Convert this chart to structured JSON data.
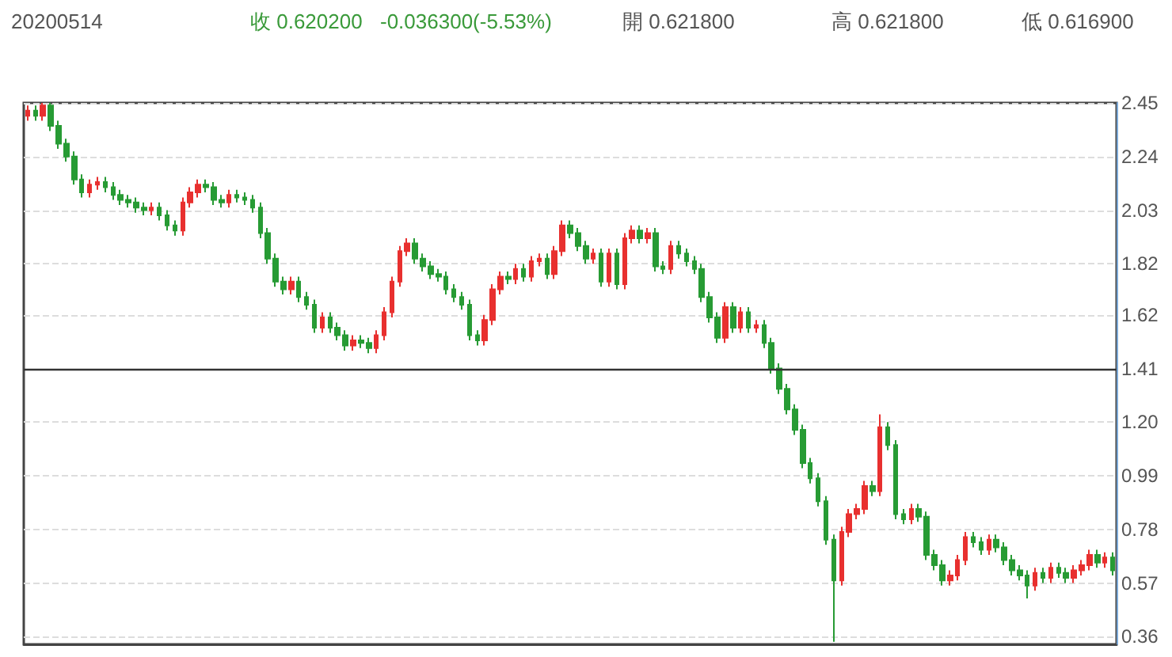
{
  "chart_data": {
    "type": "candlestick",
    "title": "20200514",
    "annotations": [
      "收 0.620200",
      "-0.036300(-5.53%)",
      "開 0.621800",
      "高 0.621800",
      "低 0.616900"
    ],
    "categories": [
      null,
      null,
      null,
      null,
      null,
      null,
      null,
      null,
      null,
      null,
      null,
      null,
      null,
      null,
      null,
      null,
      null,
      null,
      null,
      null,
      null,
      null,
      null,
      null,
      null,
      null,
      null,
      null,
      null,
      null,
      null,
      null,
      null,
      null,
      null,
      null,
      null,
      null,
      null,
      null,
      null,
      null,
      null,
      null,
      null,
      null,
      null,
      null,
      null,
      null,
      null,
      null,
      null,
      null,
      null,
      null,
      null,
      null,
      null,
      null,
      null,
      null,
      null,
      null,
      null,
      null,
      null,
      null,
      null,
      null,
      null,
      null,
      null,
      null,
      null,
      null,
      null,
      null,
      null,
      null,
      null,
      null,
      null,
      null,
      null,
      null,
      null,
      null,
      null,
      null,
      null,
      null,
      null,
      null,
      null,
      null,
      null,
      null,
      null,
      null,
      null,
      null,
      null,
      null,
      null,
      null,
      null,
      null,
      null,
      null,
      null,
      null,
      null,
      null,
      null,
      null,
      null,
      null,
      null,
      null,
      null,
      null,
      null,
      null,
      null,
      null,
      null,
      null,
      null,
      null,
      null,
      null,
      null,
      null,
      null,
      null,
      null,
      null,
      null,
      null,
      null
    ],
    "ohlc": [
      [
        2.4,
        2.44,
        2.38,
        2.42
      ],
      [
        2.42,
        2.44,
        2.38,
        2.4
      ],
      [
        2.4,
        2.45,
        2.38,
        2.44
      ],
      [
        2.44,
        2.45,
        2.34,
        2.36
      ],
      [
        2.36,
        2.38,
        2.27,
        2.29
      ],
      [
        2.29,
        2.31,
        2.22,
        2.24
      ],
      [
        2.24,
        2.26,
        2.13,
        2.15
      ],
      [
        2.15,
        2.17,
        2.08,
        2.1
      ],
      [
        2.1,
        2.15,
        2.08,
        2.13
      ],
      [
        2.13,
        2.16,
        2.11,
        2.14
      ],
      [
        2.14,
        2.16,
        2.1,
        2.12
      ],
      [
        2.12,
        2.14,
        2.07,
        2.09
      ],
      [
        2.09,
        2.11,
        2.05,
        2.07
      ],
      [
        2.07,
        2.09,
        2.04,
        2.06
      ],
      [
        2.06,
        2.08,
        2.02,
        2.04
      ],
      [
        2.04,
        2.06,
        2.01,
        2.03
      ],
      [
        2.03,
        2.06,
        2.01,
        2.04
      ],
      [
        2.04,
        2.06,
        1.99,
        2.01
      ],
      [
        2.01,
        2.03,
        1.95,
        1.97
      ],
      [
        1.97,
        1.99,
        1.93,
        1.95
      ],
      [
        1.95,
        2.08,
        1.93,
        2.06
      ],
      [
        2.06,
        2.12,
        2.04,
        2.1
      ],
      [
        2.1,
        2.15,
        2.08,
        2.13
      ],
      [
        2.13,
        2.15,
        2.1,
        2.12
      ],
      [
        2.12,
        2.14,
        2.05,
        2.07
      ],
      [
        2.07,
        2.09,
        2.04,
        2.06
      ],
      [
        2.06,
        2.11,
        2.04,
        2.09
      ],
      [
        2.09,
        2.11,
        2.06,
        2.08
      ],
      [
        2.08,
        2.1,
        2.05,
        2.07
      ],
      [
        2.07,
        2.09,
        2.02,
        2.04
      ],
      [
        2.04,
        2.06,
        1.92,
        1.94
      ],
      [
        1.94,
        1.96,
        1.82,
        1.84
      ],
      [
        1.84,
        1.86,
        1.73,
        1.75
      ],
      [
        1.75,
        1.77,
        1.7,
        1.72
      ],
      [
        1.72,
        1.77,
        1.7,
        1.75
      ],
      [
        1.75,
        1.77,
        1.67,
        1.69
      ],
      [
        1.69,
        1.71,
        1.64,
        1.66
      ],
      [
        1.66,
        1.68,
        1.55,
        1.57
      ],
      [
        1.57,
        1.63,
        1.55,
        1.61
      ],
      [
        1.61,
        1.63,
        1.55,
        1.57
      ],
      [
        1.57,
        1.59,
        1.52,
        1.54
      ],
      [
        1.54,
        1.56,
        1.48,
        1.5
      ],
      [
        1.5,
        1.54,
        1.48,
        1.52
      ],
      [
        1.52,
        1.54,
        1.49,
        1.51
      ],
      [
        1.51,
        1.53,
        1.47,
        1.49
      ],
      [
        1.49,
        1.56,
        1.47,
        1.54
      ],
      [
        1.54,
        1.65,
        1.52,
        1.63
      ],
      [
        1.63,
        1.77,
        1.61,
        1.75
      ],
      [
        1.75,
        1.89,
        1.73,
        1.87
      ],
      [
        1.87,
        1.92,
        1.85,
        1.9
      ],
      [
        1.9,
        1.92,
        1.82,
        1.84
      ],
      [
        1.84,
        1.86,
        1.79,
        1.81
      ],
      [
        1.81,
        1.83,
        1.76,
        1.78
      ],
      [
        1.78,
        1.8,
        1.75,
        1.77
      ],
      [
        1.77,
        1.79,
        1.7,
        1.72
      ],
      [
        1.72,
        1.74,
        1.67,
        1.69
      ],
      [
        1.69,
        1.71,
        1.64,
        1.66
      ],
      [
        1.66,
        1.68,
        1.52,
        1.54
      ],
      [
        1.54,
        1.56,
        1.5,
        1.52
      ],
      [
        1.52,
        1.62,
        1.5,
        1.6
      ],
      [
        1.6,
        1.74,
        1.58,
        1.72
      ],
      [
        1.72,
        1.79,
        1.7,
        1.77
      ],
      [
        1.77,
        1.79,
        1.74,
        1.76
      ],
      [
        1.76,
        1.82,
        1.74,
        1.8
      ],
      [
        1.8,
        1.82,
        1.75,
        1.77
      ],
      [
        1.77,
        1.85,
        1.75,
        1.83
      ],
      [
        1.83,
        1.86,
        1.81,
        1.84
      ],
      [
        1.84,
        1.86,
        1.76,
        1.78
      ],
      [
        1.78,
        1.89,
        1.76,
        1.87
      ],
      [
        1.87,
        1.99,
        1.85,
        1.97
      ],
      [
        1.97,
        1.99,
        1.92,
        1.94
      ],
      [
        1.94,
        1.96,
        1.87,
        1.89
      ],
      [
        1.89,
        1.91,
        1.82,
        1.84
      ],
      [
        1.84,
        1.88,
        1.82,
        1.86
      ],
      [
        1.86,
        1.88,
        1.73,
        1.75
      ],
      [
        1.75,
        1.88,
        1.73,
        1.86
      ],
      [
        1.86,
        1.88,
        1.72,
        1.74
      ],
      [
        1.74,
        1.94,
        1.72,
        1.92
      ],
      [
        1.92,
        1.97,
        1.9,
        1.95
      ],
      [
        1.95,
        1.97,
        1.9,
        1.92
      ],
      [
        1.92,
        1.96,
        1.9,
        1.94
      ],
      [
        1.94,
        1.96,
        1.79,
        1.81
      ],
      [
        1.81,
        1.83,
        1.78,
        1.8
      ],
      [
        1.8,
        1.91,
        1.78,
        1.89
      ],
      [
        1.89,
        1.91,
        1.84,
        1.86
      ],
      [
        1.86,
        1.88,
        1.81,
        1.83
      ],
      [
        1.83,
        1.85,
        1.78,
        1.8
      ],
      [
        1.8,
        1.82,
        1.67,
        1.69
      ],
      [
        1.69,
        1.71,
        1.59,
        1.61
      ],
      [
        1.61,
        1.63,
        1.51,
        1.53
      ],
      [
        1.53,
        1.67,
        1.51,
        1.65
      ],
      [
        1.65,
        1.67,
        1.55,
        1.57
      ],
      [
        1.57,
        1.65,
        1.55,
        1.63
      ],
      [
        1.63,
        1.65,
        1.55,
        1.57
      ],
      [
        1.57,
        1.6,
        1.55,
        1.58
      ],
      [
        1.58,
        1.6,
        1.49,
        1.51
      ],
      [
        1.51,
        1.53,
        1.39,
        1.41
      ],
      [
        1.41,
        1.43,
        1.31,
        1.33
      ],
      [
        1.33,
        1.35,
        1.23,
        1.25
      ],
      [
        1.25,
        1.27,
        1.15,
        1.17
      ],
      [
        1.17,
        1.19,
        1.02,
        1.04
      ],
      [
        1.04,
        1.06,
        0.96,
        0.98
      ],
      [
        0.98,
        1.0,
        0.87,
        0.89
      ],
      [
        0.89,
        0.91,
        0.72,
        0.74
      ],
      [
        0.74,
        0.76,
        0.34,
        0.58
      ],
      [
        0.58,
        0.79,
        0.56,
        0.77
      ],
      [
        0.77,
        0.86,
        0.75,
        0.84
      ],
      [
        0.84,
        0.88,
        0.82,
        0.86
      ],
      [
        0.86,
        0.97,
        0.84,
        0.95
      ],
      [
        0.95,
        0.97,
        0.91,
        0.93
      ],
      [
        0.93,
        1.23,
        0.91,
        1.18
      ],
      [
        1.18,
        1.2,
        1.09,
        1.11
      ],
      [
        1.11,
        1.13,
        0.82,
        0.84
      ],
      [
        0.84,
        0.86,
        0.8,
        0.82
      ],
      [
        0.82,
        0.88,
        0.8,
        0.86
      ],
      [
        0.86,
        0.88,
        0.81,
        0.83
      ],
      [
        0.83,
        0.85,
        0.66,
        0.68
      ],
      [
        0.68,
        0.7,
        0.62,
        0.64
      ],
      [
        0.64,
        0.66,
        0.56,
        0.58
      ],
      [
        0.58,
        0.62,
        0.56,
        0.6
      ],
      [
        0.6,
        0.68,
        0.58,
        0.66
      ],
      [
        0.66,
        0.77,
        0.64,
        0.75
      ],
      [
        0.75,
        0.77,
        0.71,
        0.73
      ],
      [
        0.73,
        0.75,
        0.68,
        0.7
      ],
      [
        0.7,
        0.76,
        0.68,
        0.74
      ],
      [
        0.74,
        0.76,
        0.69,
        0.71
      ],
      [
        0.71,
        0.73,
        0.64,
        0.66
      ],
      [
        0.66,
        0.68,
        0.6,
        0.62
      ],
      [
        0.62,
        0.64,
        0.58,
        0.6
      ],
      [
        0.6,
        0.62,
        0.51,
        0.56
      ],
      [
        0.56,
        0.63,
        0.54,
        0.61
      ],
      [
        0.61,
        0.63,
        0.57,
        0.59
      ],
      [
        0.59,
        0.65,
        0.57,
        0.63
      ],
      [
        0.63,
        0.65,
        0.59,
        0.61
      ],
      [
        0.61,
        0.63,
        0.57,
        0.59
      ],
      [
        0.59,
        0.64,
        0.57,
        0.62
      ],
      [
        0.62,
        0.66,
        0.6,
        0.64
      ],
      [
        0.64,
        0.7,
        0.62,
        0.68
      ],
      [
        0.68,
        0.7,
        0.63,
        0.65
      ],
      [
        0.65,
        0.69,
        0.63,
        0.67
      ],
      [
        0.67,
        0.69,
        0.6,
        0.62
      ]
    ],
    "colors": [
      "#e8302f",
      "#279b34",
      "#e8302f",
      "#279b34",
      "#279b34",
      "#279b34",
      "#279b34",
      "#279b34",
      "#e8302f",
      "#e8302f",
      "#279b34",
      "#279b34",
      "#279b34",
      "#279b34",
      "#279b34",
      "#279b34",
      "#e8302f",
      "#279b34",
      "#279b34",
      "#279b34",
      "#e8302f",
      "#e8302f",
      "#e8302f",
      "#279b34",
      "#279b34",
      "#279b34",
      "#e8302f",
      "#279b34",
      "#279b34",
      "#279b34",
      "#279b34",
      "#279b34",
      "#279b34",
      "#279b34",
      "#e8302f",
      "#279b34",
      "#279b34",
      "#279b34",
      "#e8302f",
      "#279b34",
      "#279b34",
      "#279b34",
      "#e8302f",
      "#279b34",
      "#279b34",
      "#e8302f",
      "#e8302f",
      "#e8302f",
      "#e8302f",
      "#e8302f",
      "#279b34",
      "#279b34",
      "#279b34",
      "#279b34",
      "#279b34",
      "#279b34",
      "#279b34",
      "#279b34",
      "#279b34",
      "#e8302f",
      "#e8302f",
      "#e8302f",
      "#279b34",
      "#e8302f",
      "#279b34",
      "#e8302f",
      "#e8302f",
      "#279b34",
      "#e8302f",
      "#e8302f",
      "#279b34",
      "#279b34",
      "#279b34",
      "#e8302f",
      "#279b34",
      "#e8302f",
      "#279b34",
      "#e8302f",
      "#e8302f",
      "#279b34",
      "#e8302f",
      "#279b34",
      "#279b34",
      "#e8302f",
      "#279b34",
      "#279b34",
      "#279b34",
      "#279b34",
      "#279b34",
      "#279b34",
      "#e8302f",
      "#279b34",
      "#e8302f",
      "#279b34",
      "#e8302f",
      "#279b34",
      "#279b34",
      "#279b34",
      "#279b34",
      "#279b34",
      "#279b34",
      "#279b34",
      "#279b34",
      "#279b34",
      "#279b34",
      "#e8302f",
      "#e8302f",
      "#e8302f",
      "#e8302f",
      "#279b34",
      "#e8302f",
      "#279b34",
      "#279b34",
      "#279b34",
      "#e8302f",
      "#279b34",
      "#279b34",
      "#279b34",
      "#279b34",
      "#e8302f",
      "#e8302f",
      "#e8302f",
      "#279b34",
      "#279b34",
      "#e8302f",
      "#279b34",
      "#279b34",
      "#279b34",
      "#279b34",
      "#279b34",
      "#e8302f",
      "#279b34",
      "#e8302f",
      "#279b34",
      "#279b34",
      "#e8302f",
      "#e8302f",
      "#e8302f",
      "#279b34",
      "#e8302f",
      "#279b34"
    ],
    "ylim": [
      0.33,
      2.45
    ],
    "yticks": [
      0.36,
      0.57,
      0.78,
      0.99,
      {
        "value": 1.2,
        "label": "1.20"
      },
      1.41,
      1.62,
      1.82,
      2.03,
      2.24,
      2.45
    ],
    "ref_lines": [
      {
        "axis": "y",
        "value": 1.41,
        "color": "#333333"
      }
    ],
    "grid": "y"
  }
}
